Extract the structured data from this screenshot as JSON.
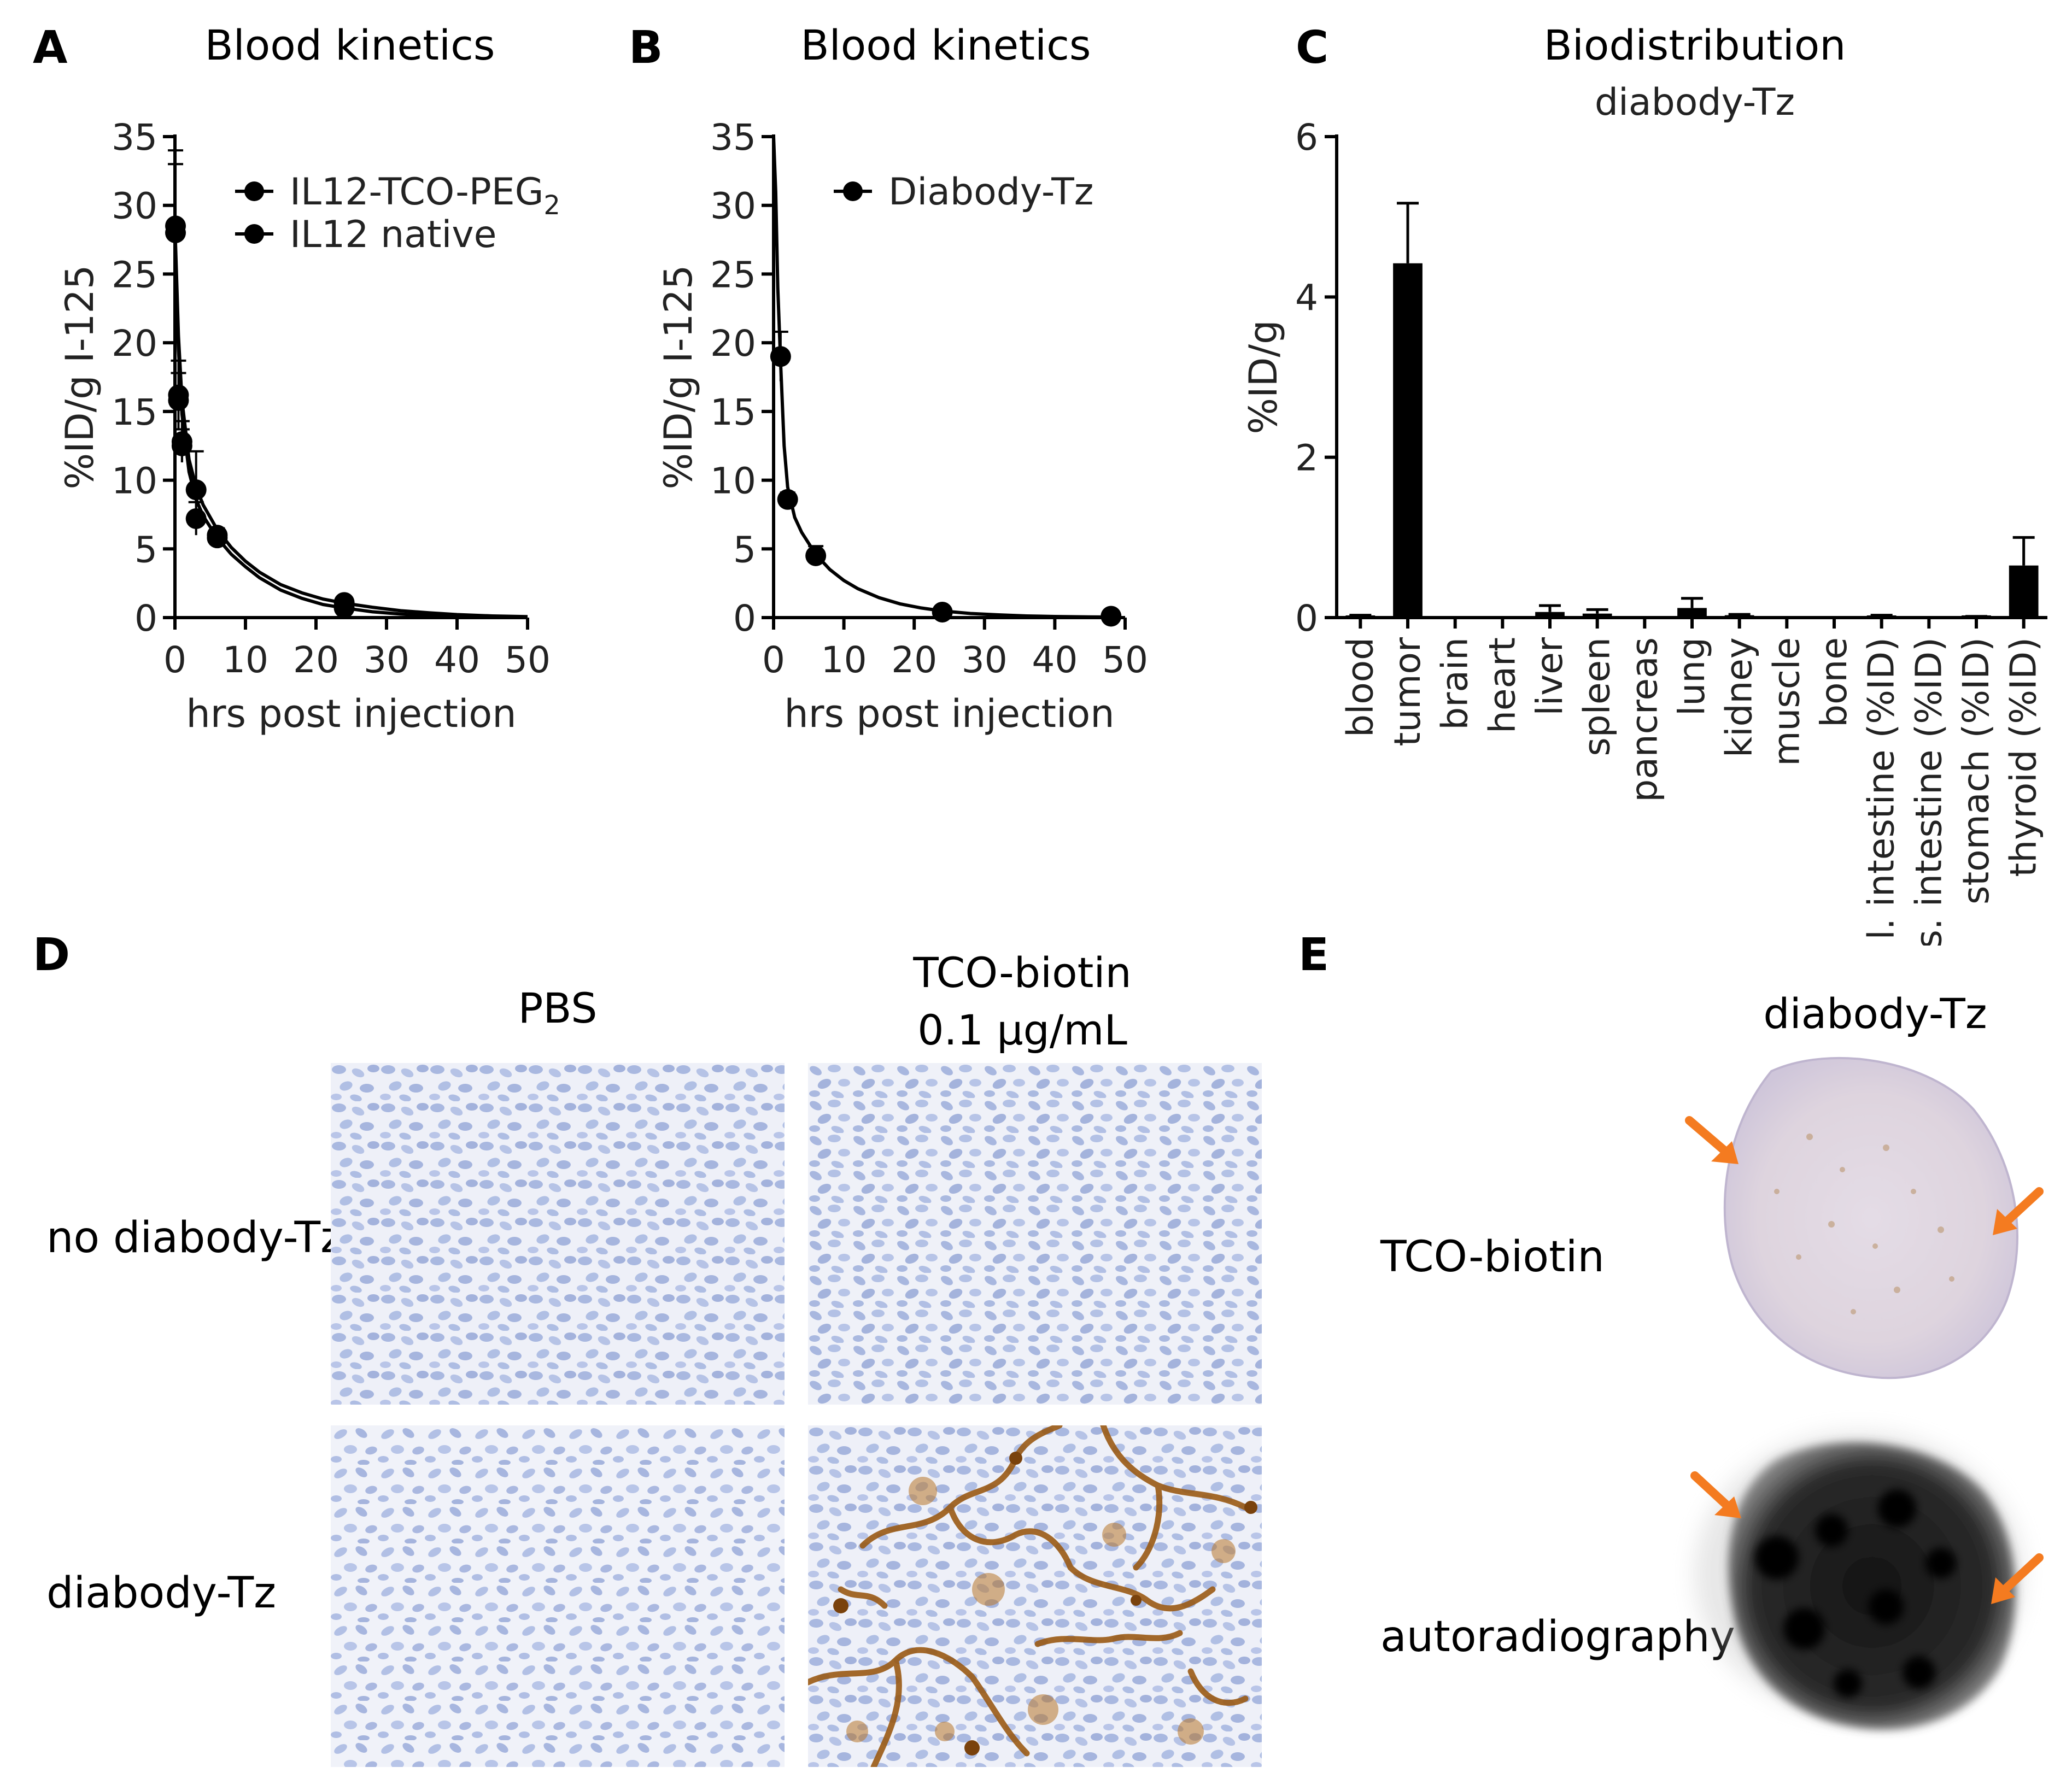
{
  "panels": {
    "A": {
      "letter": "A",
      "title": "Blood kinetics"
    },
    "B": {
      "letter": "B",
      "title": "Blood kinetics"
    },
    "C": {
      "letter": "C",
      "title": "Biodistribution",
      "subtitle": "diabody-Tz"
    },
    "D": {
      "letter": "D",
      "col_labels": [
        "PBS",
        "TCO-biotin",
        "0.1 μg/mL"
      ],
      "row_labels": [
        "no diabody-Tz",
        "diabody-Tz"
      ]
    },
    "E": {
      "letter": "E",
      "col_label": "diabody-Tz",
      "row_labels": [
        "TCO-biotin",
        "autoradiography"
      ]
    }
  },
  "colors": {
    "ink": "#000000",
    "stain_blue": "#b9c4e6",
    "dab_brown": "#9a5a14",
    "arrow": "#f47b20",
    "autoradio": "#111111"
  },
  "chart_data": [
    {
      "type": "scatter",
      "title": "Blood kinetics",
      "xlabel": "hrs post injection",
      "ylabel": "%ID/g  I-125",
      "xlim": [
        0,
        50
      ],
      "ylim": [
        0,
        35
      ],
      "xticks": [
        0,
        10,
        20,
        30,
        40,
        50
      ],
      "yticks": [
        0,
        5,
        10,
        15,
        20,
        25,
        30,
        35
      ],
      "legend_position": "top-right",
      "series": [
        {
          "name": "IL12-TCO-PEG",
          "name_subscript": "2",
          "x": [
            0.08,
            0.5,
            1,
            3,
            6,
            24
          ],
          "y": [
            28.5,
            16.2,
            12.8,
            9.3,
            6.0,
            1.1
          ],
          "err": [
            5.5,
            2.5,
            1.5,
            2.8,
            0.5,
            0.3
          ],
          "fit": [
            [
              0,
              28.5
            ],
            [
              0.5,
              20.5
            ],
            [
              1,
              15.8
            ],
            [
              2,
              11.5
            ],
            [
              3,
              9.5
            ],
            [
              4,
              8.2
            ],
            [
              6,
              6.4
            ],
            [
              8,
              5.1
            ],
            [
              10,
              4.1
            ],
            [
              12,
              3.3
            ],
            [
              15,
              2.4
            ],
            [
              18,
              1.8
            ],
            [
              21,
              1.35
            ],
            [
              24,
              1.05
            ],
            [
              28,
              0.75
            ],
            [
              32,
              0.5
            ],
            [
              36,
              0.35
            ],
            [
              40,
              0.22
            ],
            [
              45,
              0.12
            ],
            [
              50,
              0.07
            ]
          ]
        },
        {
          "name": "IL12 native",
          "x": [
            0.08,
            0.5,
            1,
            3,
            6,
            24
          ],
          "y": [
            28.0,
            15.8,
            12.5,
            7.2,
            5.8,
            0.7
          ],
          "err": [
            5.0,
            2.0,
            1.2,
            1.2,
            0.6,
            0.2
          ],
          "fit": [
            [
              0,
              28.0
            ],
            [
              0.5,
              19.5
            ],
            [
              1,
              14.8
            ],
            [
              2,
              10.6
            ],
            [
              3,
              8.6
            ],
            [
              4,
              7.4
            ],
            [
              6,
              5.8
            ],
            [
              8,
              4.6
            ],
            [
              10,
              3.7
            ],
            [
              12,
              2.9
            ],
            [
              15,
              2.0
            ],
            [
              18,
              1.4
            ],
            [
              21,
              0.95
            ],
            [
              24,
              0.7
            ],
            [
              28,
              0.42
            ],
            [
              32,
              0.26
            ],
            [
              36,
              0.16
            ],
            [
              40,
              0.1
            ],
            [
              45,
              0.05
            ],
            [
              50,
              0.03
            ]
          ]
        }
      ]
    },
    {
      "type": "scatter",
      "title": "Blood kinetics",
      "xlabel": "hrs post injection",
      "ylabel": "%ID/g  I-125",
      "xlim": [
        0,
        50
      ],
      "ylim": [
        0,
        35
      ],
      "xticks": [
        0,
        10,
        20,
        30,
        40,
        50
      ],
      "yticks": [
        0,
        5,
        10,
        15,
        20,
        25,
        30,
        35
      ],
      "legend_position": "top-right",
      "series": [
        {
          "name": "Diabody-Tz",
          "x": [
            1,
            2,
            6,
            24,
            48
          ],
          "y": [
            19.0,
            8.6,
            4.5,
            0.4,
            0.1
          ],
          "err": [
            1.8,
            0.5,
            0.7,
            0.1,
            0.05
          ],
          "fit": [
            [
              0,
              35
            ],
            [
              0.3,
              31
            ],
            [
              0.6,
              24
            ],
            [
              1,
              18.5
            ],
            [
              1.5,
              12.5
            ],
            [
              2,
              9.5
            ],
            [
              3,
              7.3
            ],
            [
              4,
              6.2
            ],
            [
              6,
              4.6
            ],
            [
              8,
              3.5
            ],
            [
              10,
              2.7
            ],
            [
              12,
              2.1
            ],
            [
              15,
              1.45
            ],
            [
              18,
              1.0
            ],
            [
              21,
              0.7
            ],
            [
              24,
              0.48
            ],
            [
              28,
              0.3
            ],
            [
              32,
              0.2
            ],
            [
              36,
              0.12
            ],
            [
              40,
              0.08
            ],
            [
              45,
              0.05
            ],
            [
              48,
              0.04
            ]
          ]
        }
      ]
    },
    {
      "type": "bar",
      "title": "Biodistribution",
      "subtitle": "diabody-Tz",
      "ylabel": "%ID/g",
      "ylim": [
        0,
        6
      ],
      "yticks": [
        0,
        2,
        4,
        6
      ],
      "categories": [
        "blood",
        "tumor",
        "brain",
        "heart",
        "liver",
        "spleen",
        "pancreas",
        "lung",
        "kidney",
        "muscle",
        "bone",
        "l. intestine (%ID)",
        "s. intestine (%ID)",
        "stomach (%ID)",
        "thyroid (%ID)"
      ],
      "values": [
        0.02,
        4.42,
        0,
        0,
        0.07,
        0.05,
        0,
        0.12,
        0.03,
        0,
        0,
        0.01,
        0,
        0.005,
        0.65
      ],
      "err": [
        0.01,
        0.75,
        0,
        0,
        0.08,
        0.05,
        0,
        0.12,
        0.01,
        0,
        0,
        0.02,
        0,
        0.01,
        0.35
      ]
    }
  ]
}
